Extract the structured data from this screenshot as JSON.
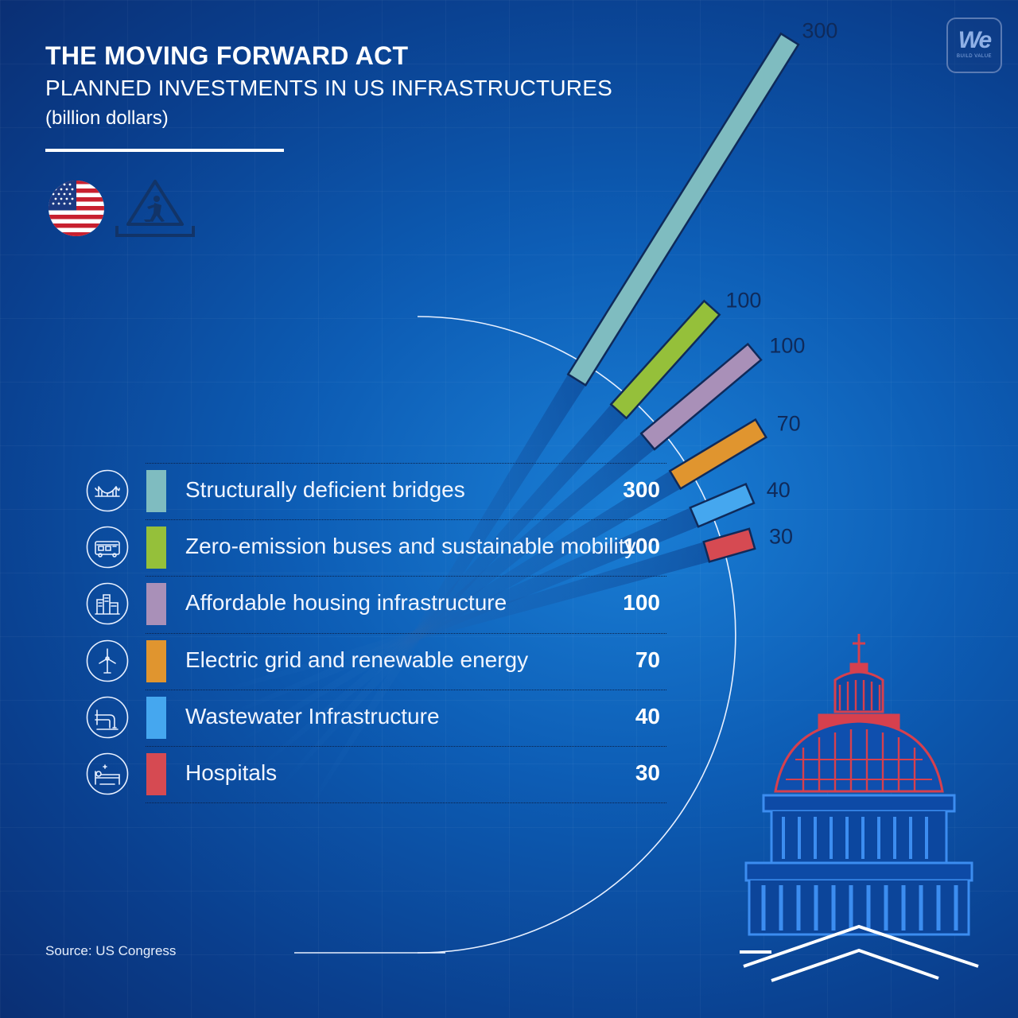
{
  "header": {
    "title": "THE MOVING FORWARD ACT",
    "subtitle": "PLANNED INVESTMENTS IN US INFRASTRUCTURES",
    "unit": "(billion dollars)"
  },
  "logo": {
    "mark": "We",
    "tagline": "BUILD VALUE"
  },
  "icons": [
    "us-flag-icon",
    "construction-worker-icon",
    "capitol-dome-icon"
  ],
  "footer": {
    "source": "Source: US Congress"
  },
  "chart_data": {
    "type": "bar",
    "title": "THE MOVING FORWARD ACT",
    "subtitle": "PLANNED INVESTMENTS IN US INFRASTRUCTURES",
    "unit": "(billion dollars)",
    "categories": [
      "Structurally deficient bridges",
      "Zero-emission buses and sustainable mobility",
      "Affordable housing infrastructure",
      "Electric grid and renewable energy",
      "Wastewater Infrastructure",
      "Hospitals"
    ],
    "values": [
      300,
      100,
      100,
      70,
      40,
      30
    ],
    "colors": [
      "#7fbcc0",
      "#95c03a",
      "#a990b8",
      "#e0952f",
      "#45a7ef",
      "#d64a52"
    ],
    "category_icons": [
      "bridge-icon",
      "bus-icon",
      "buildings-icon",
      "wind-turbine-icon",
      "pipe-icon",
      "hospital-bed-icon"
    ],
    "layout": "radial bars fanning out from an arc, with a ranked legend table",
    "grid": false
  }
}
